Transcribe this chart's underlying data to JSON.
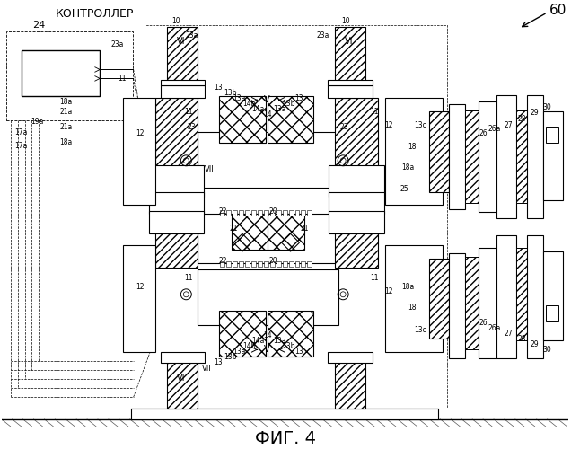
{
  "title": "ФИГ. 4",
  "label_60": "60",
  "label_controller": "КОНТРОЛЛЕР",
  "label_24": "24",
  "bg_color": "#ffffff",
  "line_color": "#000000"
}
